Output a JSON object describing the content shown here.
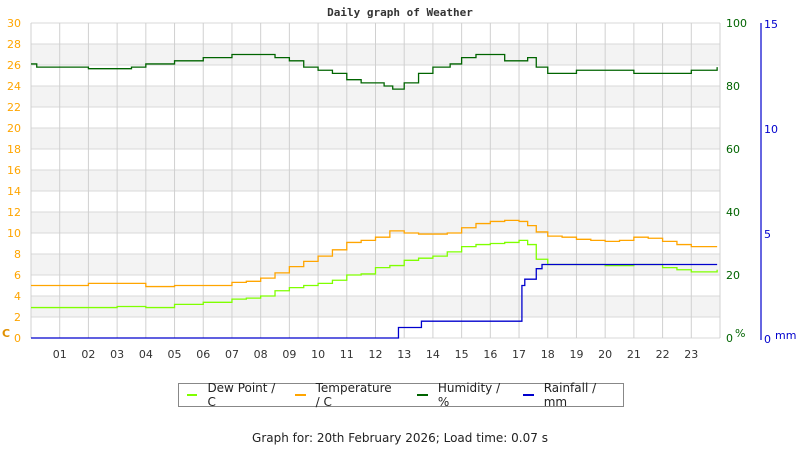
{
  "title": "Daily graph of Weather",
  "footer": "Graph for: 20th February 2026; Load time: 0.07 s",
  "legend": [
    {
      "label": "Dew Point / C",
      "color": "#7fff00"
    },
    {
      "label": "Temperature / C",
      "color": "#ffa500"
    },
    {
      "label": "Humidity / %",
      "color": "#006400"
    },
    {
      "label": "Rainfall / mm",
      "color": "#0000cd"
    }
  ],
  "axes": {
    "left_unit": "C",
    "right1_unit": "%",
    "right2_unit": "mm"
  },
  "chart_data": {
    "type": "line",
    "title": "Daily graph of Weather",
    "xlabel": "Hour",
    "x_ticks": [
      "01",
      "02",
      "03",
      "04",
      "05",
      "06",
      "07",
      "08",
      "09",
      "10",
      "11",
      "12",
      "13",
      "14",
      "15",
      "16",
      "17",
      "18",
      "19",
      "20",
      "21",
      "22",
      "23"
    ],
    "xlim": [
      0,
      24
    ],
    "y_axes": [
      {
        "name": "C",
        "ylim": [
          0,
          30
        ],
        "ticks": [
          0,
          2,
          4,
          6,
          8,
          10,
          12,
          14,
          16,
          18,
          20,
          22,
          24,
          26,
          28,
          30
        ],
        "color": "#ffa500"
      },
      {
        "name": "%",
        "ylim": [
          0,
          100
        ],
        "ticks": [
          0,
          20,
          40,
          60,
          80,
          100
        ],
        "color": "#006400"
      },
      {
        "name": "mm",
        "ylim": [
          0,
          15
        ],
        "ticks": [
          0,
          5,
          10,
          15
        ],
        "color": "#0000cd"
      }
    ],
    "grid": true,
    "legend_position": "bottom",
    "series": [
      {
        "name": "Dew Point / C",
        "axis": "C",
        "color": "#7fff00",
        "x": [
          0,
          1,
          2,
          3,
          4,
          5,
          6,
          7,
          7.5,
          8,
          8.5,
          9,
          9.5,
          10,
          10.5,
          11,
          11.5,
          12,
          12.5,
          13,
          13.5,
          14,
          14.5,
          15,
          15.5,
          16,
          16.5,
          17,
          17.3,
          17.6,
          18,
          18.5,
          19,
          19.5,
          20,
          20.5,
          21,
          21.5,
          22,
          22.5,
          23,
          23.5,
          23.9
        ],
        "values": [
          2.9,
          2.9,
          2.9,
          3.0,
          2.9,
          3.2,
          3.4,
          3.7,
          3.8,
          4.0,
          4.5,
          4.8,
          5.0,
          5.2,
          5.5,
          6.0,
          6.1,
          6.7,
          6.9,
          7.4,
          7.6,
          7.8,
          8.2,
          8.7,
          8.9,
          9.0,
          9.1,
          9.3,
          8.9,
          7.5,
          7.0,
          7.0,
          7.0,
          7.0,
          6.9,
          6.9,
          7.0,
          7.0,
          6.7,
          6.5,
          6.3,
          6.3,
          6.5
        ]
      },
      {
        "name": "Temperature / C",
        "axis": "C",
        "color": "#ffa500",
        "x": [
          0,
          1,
          2,
          3,
          4,
          5,
          6,
          7,
          7.5,
          8,
          8.5,
          9,
          9.5,
          10,
          10.5,
          11,
          11.5,
          12,
          12.5,
          13,
          13.5,
          14,
          14.5,
          15,
          15.5,
          16,
          16.5,
          17,
          17.3,
          17.6,
          18,
          18.5,
          19,
          19.5,
          20,
          20.5,
          21,
          21.5,
          22,
          22.5,
          23,
          23.5,
          23.9
        ],
        "values": [
          5.0,
          5.0,
          5.2,
          5.2,
          4.9,
          5.0,
          5.0,
          5.3,
          5.4,
          5.7,
          6.2,
          6.8,
          7.3,
          7.8,
          8.4,
          9.1,
          9.3,
          9.6,
          10.2,
          10.0,
          9.9,
          9.9,
          10.0,
          10.5,
          10.9,
          11.1,
          11.2,
          11.1,
          10.7,
          10.1,
          9.7,
          9.6,
          9.4,
          9.3,
          9.2,
          9.3,
          9.6,
          9.5,
          9.2,
          8.9,
          8.7,
          8.7,
          8.7
        ]
      },
      {
        "name": "Humidity / %",
        "axis": "%",
        "color": "#006400",
        "x": [
          0,
          0.2,
          1,
          2,
          2.5,
          3,
          3.5,
          4,
          5,
          6,
          7,
          8,
          8.5,
          9,
          9.5,
          10,
          10.5,
          11,
          11.5,
          12,
          12.3,
          12.6,
          13,
          13.5,
          14,
          14.3,
          14.6,
          15,
          15.5,
          16,
          16.5,
          17,
          17.3,
          17.6,
          18,
          18.5,
          19,
          19.5,
          20,
          20.5,
          21,
          21.5,
          22,
          22.5,
          23,
          23.5,
          23.9
        ],
        "values": [
          87,
          86,
          86,
          85.5,
          85.5,
          85.5,
          86,
          87,
          88,
          89,
          90,
          90,
          89,
          88,
          86,
          85,
          84,
          82,
          81,
          81,
          80,
          79,
          81,
          84,
          86,
          86,
          87,
          89,
          90,
          90,
          88,
          88,
          89,
          86,
          84,
          84,
          85,
          85,
          85,
          85,
          84,
          84,
          84,
          84,
          85,
          85,
          86
        ]
      },
      {
        "name": "Rainfall / mm",
        "axis": "mm",
        "color": "#0000cd",
        "x": [
          0,
          12.7,
          12.8,
          13.5,
          13.6,
          17.0,
          17.1,
          17.2,
          17.5,
          17.6,
          17.8,
          23.9
        ],
        "values": [
          0,
          0,
          0.5,
          0.5,
          0.8,
          0.8,
          2.5,
          2.8,
          2.8,
          3.3,
          3.5,
          3.5
        ]
      }
    ]
  }
}
